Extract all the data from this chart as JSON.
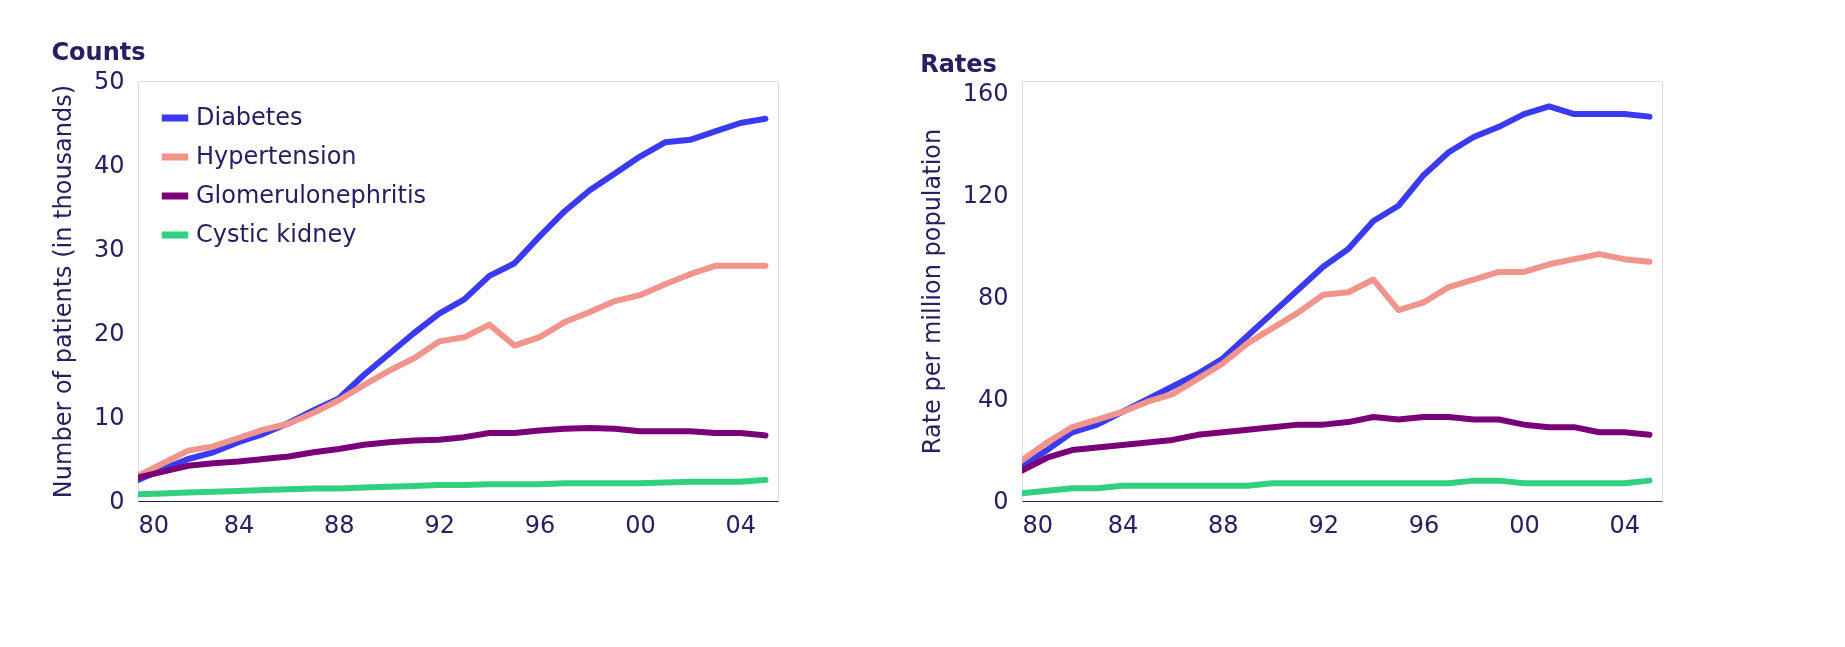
{
  "chart_data": [
    {
      "type": "line",
      "title": "Counts",
      "ylabel": "Number of patients (in thousands)",
      "legend": "top left",
      "x": [
        1980,
        1981,
        1982,
        1983,
        1984,
        1985,
        1986,
        1987,
        1988,
        1989,
        1990,
        1991,
        1992,
        1993,
        1994,
        1995,
        1996,
        1997,
        1998,
        1999,
        2000,
        2001,
        2002,
        2003,
        2004,
        2005
      ],
      "xlim": [
        1980,
        2005.5
      ],
      "xticks": [
        {
          "value": 1980,
          "label": "80"
        },
        {
          "value": 1984,
          "label": "84"
        },
        {
          "value": 1988,
          "label": "88"
        },
        {
          "value": 1992,
          "label": "92"
        },
        {
          "value": 1996,
          "label": "96"
        },
        {
          "value": 2000,
          "label": "00"
        },
        {
          "value": 2004,
          "label": "04"
        }
      ],
      "ylim": [
        0,
        50
      ],
      "yticks": [
        0,
        10,
        20,
        30,
        40,
        50
      ],
      "series": [
        {
          "name": "Diabetes",
          "color": "#3a3af0",
          "values": [
            2.5,
            3.8,
            5,
            5.8,
            7,
            8,
            9.3,
            10.8,
            12.2,
            15,
            17.5,
            20,
            22.3,
            24,
            26.8,
            28.3,
            31.5,
            34.5,
            37,
            39,
            41,
            42.7,
            43,
            44,
            45,
            45.5
          ]
        },
        {
          "name": "Hypertension",
          "color": "#f0948c",
          "values": [
            3,
            4.5,
            6,
            6.5,
            7.5,
            8.5,
            9.2,
            10.5,
            12,
            13.8,
            15.5,
            17,
            19,
            19.5,
            21,
            18.5,
            19.5,
            21.3,
            22.5,
            23.8,
            24.5,
            25.8,
            27,
            28,
            28,
            28
          ]
        },
        {
          "name": "Glomerulonephritis",
          "color": "#7a0078",
          "values": [
            2.8,
            3.5,
            4.2,
            4.5,
            4.7,
            5,
            5.3,
            5.8,
            6.2,
            6.7,
            7,
            7.2,
            7.3,
            7.6,
            8.1,
            8.1,
            8.4,
            8.6,
            8.7,
            8.6,
            8.3,
            8.3,
            8.3,
            8.1,
            8.1,
            7.8
          ]
        },
        {
          "name": "Cystic kidney",
          "color": "#30d080",
          "values": [
            0.8,
            0.9,
            1,
            1.1,
            1.2,
            1.3,
            1.4,
            1.5,
            1.5,
            1.6,
            1.7,
            1.8,
            1.9,
            1.9,
            2,
            2,
            2,
            2.1,
            2.1,
            2.1,
            2.1,
            2.2,
            2.3,
            2.3,
            2.3,
            2.5
          ]
        }
      ]
    },
    {
      "type": "line",
      "title": "Rates",
      "ylabel": "Rate per million population",
      "x": [
        1980,
        1981,
        1982,
        1983,
        1984,
        1985,
        1986,
        1987,
        1988,
        1989,
        1990,
        1991,
        1992,
        1993,
        1994,
        1995,
        1996,
        1997,
        1998,
        1999,
        2000,
        2001,
        2002,
        2003,
        2004,
        2005
      ],
      "xlim": [
        1980,
        2005.5
      ],
      "xticks": [
        {
          "value": 1980,
          "label": "80"
        },
        {
          "value": 1984,
          "label": "84"
        },
        {
          "value": 1988,
          "label": "88"
        },
        {
          "value": 1992,
          "label": "92"
        },
        {
          "value": 1996,
          "label": "96"
        },
        {
          "value": 2000,
          "label": "00"
        },
        {
          "value": 2004,
          "label": "04"
        }
      ],
      "ylim": [
        0,
        165
      ],
      "yticks": [
        0,
        40,
        80,
        120,
        160
      ],
      "series": [
        {
          "color": "#3a3af0",
          "values": [
            14,
            20,
            27,
            30,
            35,
            40,
            45,
            50,
            56,
            65,
            74,
            83,
            92,
            99,
            110,
            116,
            128,
            137,
            143,
            147,
            152,
            155,
            152,
            152,
            152,
            151
          ]
        },
        {
          "color": "#f0948c",
          "values": [
            16,
            23,
            29,
            32,
            35,
            39,
            42,
            48,
            54,
            62,
            68,
            74,
            81,
            82,
            87,
            75,
            78,
            84,
            87,
            90,
            90,
            93,
            95,
            97,
            95,
            94
          ]
        },
        {
          "color": "#7a0078",
          "values": [
            12,
            17,
            20,
            21,
            22,
            23,
            24,
            26,
            27,
            28,
            29,
            30,
            30,
            31,
            33,
            32,
            33,
            33,
            32,
            32,
            30,
            29,
            29,
            27,
            27,
            26
          ]
        },
        {
          "color": "#30d080",
          "values": [
            3,
            4,
            5,
            5,
            6,
            6,
            6,
            6,
            6,
            6,
            7,
            7,
            7,
            7,
            7,
            7,
            7,
            7,
            8,
            8,
            7,
            7,
            7,
            7,
            7,
            8
          ]
        }
      ]
    }
  ]
}
